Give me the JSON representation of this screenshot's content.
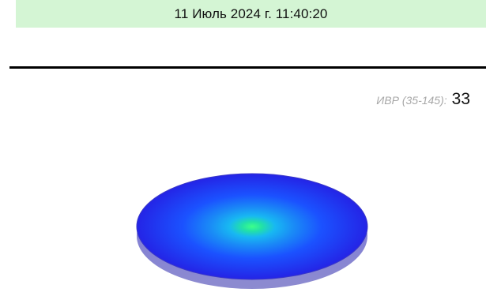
{
  "header": {
    "datetime": "11 Июль 2024 г. 11:40:20"
  },
  "metric": {
    "label": "ИВР (35-145):",
    "value": "33"
  },
  "colors": {
    "datebar_bg": "#d4f5d4",
    "disc_edge": "#2a2af0",
    "disc_center": "#30ff90",
    "disc_mid": "#1aa0f5"
  }
}
